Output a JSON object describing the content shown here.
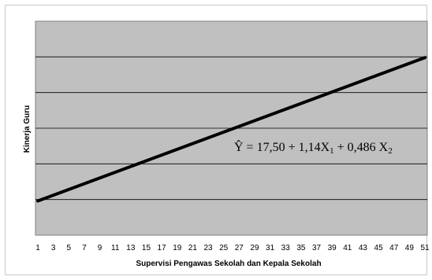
{
  "chart_data": {
    "type": "line",
    "xlabel": "Supervisi Pengawas Sekolah dan Kepala Sekolah",
    "ylabel": "Kinerja Guru",
    "x_ticks": [
      "1",
      "3",
      "5",
      "7",
      "9",
      "11",
      "13",
      "15",
      "17",
      "19",
      "21",
      "23",
      "25",
      "27",
      "29",
      "31",
      "33",
      "35",
      "37",
      "39",
      "41",
      "43",
      "45",
      "47",
      "49",
      "51"
    ],
    "xlim": [
      1,
      51
    ],
    "y_tick_labels_shown": false,
    "grid": "horizontal",
    "plot_background": "#c0c0c0",
    "line_color": "#000000",
    "annotation": {
      "prefix": "Ŷ = 17,50 + 1,14X",
      "sub1": "1",
      "mid": " + 0,486 X",
      "sub2": "2"
    },
    "series": [
      {
        "x": [
          1,
          51
        ],
        "y_relative": [
          0.16,
          0.83
        ]
      }
    ]
  }
}
